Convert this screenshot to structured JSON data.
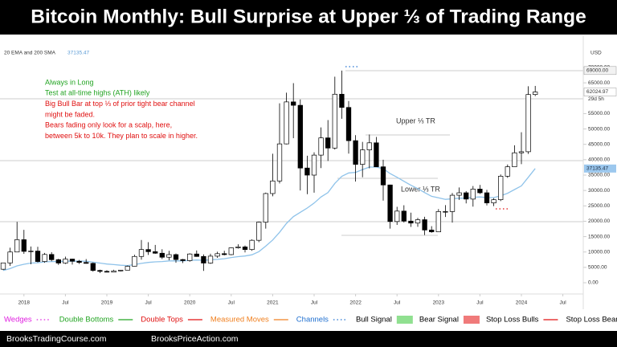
{
  "header": {
    "title": "Bitcoin Monthly: Bull Surprise at Upper ⅓ of Trading Range"
  },
  "chart_data": {
    "type": "candlestick",
    "indicator": "20 EMA and 200 SMA",
    "y_unit": "USD",
    "countdown": "29d 5h",
    "price_labels": [
      {
        "value": 69000,
        "label": "69000.00"
      }
    ],
    "notes": [
      {
        "text": "Always in Long",
        "color": "#22a422"
      },
      {
        "text": "Test at all-time highs (ATH) likely",
        "color": "#22a422"
      },
      {
        "text": "Big Bull Bar at top ⅓ of prior tight bear channel",
        "color": "#e01010"
      },
      {
        "text": "might be faded.",
        "color": "#e01010"
      },
      {
        "text": "Bears fading only look for a scalp, here,",
        "color": "#e01010"
      },
      {
        "text": "between 5k to 10k. They plan to scale in higher.",
        "color": "#e01010"
      }
    ],
    "upper_label": "Upper ⅓ TR",
    "lower_label": "Lower  ⅓ TR",
    "x": [
      "2017-10",
      "2017-11",
      "2017-12",
      "2018-01",
      "2018-02",
      "2018-03",
      "2018-04",
      "2018-05",
      "2018-06",
      "2018-07",
      "2018-08",
      "2018-09",
      "2018-10",
      "2018-11",
      "2018-12",
      "2019-01",
      "2019-02",
      "2019-03",
      "2019-04",
      "2019-05",
      "2019-06",
      "2019-07",
      "2019-08",
      "2019-09",
      "2019-10",
      "2019-11",
      "2019-12",
      "2020-01",
      "2020-02",
      "2020-03",
      "2020-04",
      "2020-05",
      "2020-06",
      "2020-07",
      "2020-08",
      "2020-09",
      "2020-10",
      "2020-11",
      "2020-12",
      "2021-01",
      "2021-02",
      "2021-03",
      "2021-04",
      "2021-05",
      "2021-06",
      "2021-07",
      "2021-08",
      "2021-09",
      "2021-10",
      "2021-11",
      "2021-12",
      "2022-01",
      "2022-02",
      "2022-03",
      "2022-04",
      "2022-05",
      "2022-06",
      "2022-07",
      "2022-08",
      "2022-09",
      "2022-10",
      "2022-11",
      "2022-12",
      "2023-01",
      "2023-02",
      "2023-03",
      "2023-04",
      "2023-05",
      "2023-06",
      "2023-07",
      "2023-08",
      "2023-09",
      "2023-10",
      "2023-11",
      "2023-12",
      "2024-01",
      "2024-02",
      "2024-03"
    ],
    "open": [
      4400,
      6450,
      10000,
      14000,
      10200,
      10300,
      6900,
      9200,
      7500,
      6400,
      7700,
      7000,
      6600,
      6300,
      4000,
      3700,
      3450,
      3850,
      4100,
      5350,
      8550,
      10800,
      10100,
      9600,
      8300,
      9150,
      7550,
      7200,
      9350,
      8550,
      6400,
      8650,
      9450,
      9150,
      11350,
      11650,
      10800,
      13800,
      19700,
      29000,
      33100,
      45150,
      58800,
      57700,
      37300,
      35000,
      41500,
      47100,
      43800,
      61300,
      57000,
      46200,
      38500,
      43200,
      45500,
      37700,
      31800,
      19900,
      23300,
      20050,
      19400,
      20500,
      17150,
      16550,
      23150,
      23150,
      28450,
      29250,
      27200,
      30450,
      29250,
      25950,
      27000,
      34650,
      37700,
      42250,
      42600,
      61200
    ],
    "high": [
      6470,
      11400,
      19800,
      17200,
      11800,
      11700,
      9700,
      9950,
      7800,
      8500,
      7800,
      7400,
      7700,
      6600,
      4250,
      4100,
      4200,
      4100,
      5600,
      9100,
      13900,
      13200,
      12300,
      10900,
      10400,
      9500,
      7750,
      9600,
      10500,
      9200,
      9450,
      10100,
      10400,
      11450,
      12500,
      12100,
      14100,
      19900,
      29300,
      41950,
      58350,
      61800,
      64900,
      59600,
      41300,
      42400,
      50500,
      52900,
      67000,
      69000,
      59100,
      48000,
      45800,
      48200,
      47400,
      40000,
      31900,
      24700,
      25200,
      22800,
      21100,
      21450,
      18400,
      23950,
      25250,
      29200,
      31000,
      29800,
      31450,
      31800,
      30200,
      27500,
      35200,
      38450,
      44700,
      48950,
      63900,
      64000
    ],
    "low": [
      4110,
      5500,
      10700,
      9400,
      6000,
      6600,
      6500,
      7000,
      5800,
      6100,
      5900,
      6100,
      6200,
      3600,
      3150,
      3350,
      3400,
      3700,
      4050,
      5300,
      7500,
      9050,
      9400,
      7700,
      7300,
      6500,
      6400,
      6850,
      8450,
      3850,
      6150,
      8100,
      8900,
      8950,
      11100,
      9850,
      10400,
      13200,
      17600,
      28100,
      32300,
      45000,
      47000,
      30000,
      28800,
      29300,
      37300,
      39600,
      43300,
      53300,
      42000,
      32900,
      34300,
      37200,
      37600,
      26700,
      17600,
      18800,
      19600,
      18150,
      18200,
      15500,
      16250,
      16500,
      21400,
      19550,
      26950,
      25800,
      24750,
      28850,
      25150,
      24900,
      26550,
      34100,
      37600,
      38550,
      41900,
      60700
    ],
    "close": [
      6450,
      10000,
      14000,
      10200,
      10300,
      6900,
      9200,
      7500,
      6400,
      7700,
      7000,
      6600,
      6300,
      4000,
      3700,
      3450,
      3850,
      4100,
      5350,
      8550,
      10800,
      10100,
      9600,
      8300,
      9150,
      7550,
      7200,
      9350,
      8550,
      6400,
      8650,
      9450,
      9150,
      11350,
      11650,
      10800,
      13800,
      19700,
      29000,
      33100,
      45150,
      58800,
      57700,
      37300,
      35000,
      41500,
      47100,
      43800,
      61300,
      57000,
      46200,
      38500,
      43200,
      45500,
      37700,
      31800,
      19900,
      23300,
      20050,
      19400,
      20500,
      17150,
      16550,
      23150,
      23150,
      28450,
      29250,
      27200,
      30450,
      29250,
      25950,
      27000,
      34650,
      37700,
      42250,
      42600,
      61200,
      62024.97
    ],
    "ema": [
      4000,
      4600,
      5500,
      6000,
      6400,
      6500,
      6800,
      6900,
      6900,
      7000,
      7000,
      7000,
      7000,
      6700,
      6400,
      6100,
      5900,
      5700,
      5600,
      5900,
      6300,
      6600,
      6800,
      6900,
      7100,
      7100,
      7100,
      7300,
      7400,
      7300,
      7500,
      7600,
      7800,
      8200,
      8500,
      8700,
      9100,
      10100,
      11900,
      13900,
      16400,
      19300,
      21500,
      22900,
      24300,
      25900,
      27900,
      29300,
      32300,
      34600,
      35700,
      35900,
      36800,
      37600,
      37600,
      37100,
      35500,
      34300,
      33000,
      31700,
      30600,
      29300,
      28100,
      27600,
      27100,
      27300,
      27500,
      27500,
      27800,
      27900,
      27700,
      27700,
      28300,
      29100,
      30300,
      31500,
      34300,
      37135.47
    ],
    "ema_color": "#8fc3ea",
    "up_color": "#ffffff",
    "down_color": "#000000",
    "ylim": [
      -3000,
      73000
    ],
    "yticks": [
      {
        "value": 0,
        "label": "0.00"
      },
      {
        "value": 5000,
        "label": "5000.00"
      },
      {
        "value": 10000,
        "label": "10000.00"
      },
      {
        "value": 15000,
        "label": "15000.00"
      },
      {
        "value": 20000,
        "label": "20000.00"
      },
      {
        "value": 25000,
        "label": "25000.00"
      },
      {
        "value": 30000,
        "label": "30000.00"
      },
      {
        "value": 35000,
        "label": "35000.00"
      },
      {
        "value": 40000,
        "label": "40000.00"
      },
      {
        "value": 45000,
        "label": "45000.00"
      },
      {
        "value": 50000,
        "label": "50000.00"
      },
      {
        "value": 55000,
        "label": "55000.00"
      },
      {
        "value": 65000,
        "label": "65000.00"
      },
      {
        "value": 70000,
        "label": "70000.00"
      }
    ],
    "xticks": [
      {
        "value": "2018-01",
        "label": "2018"
      },
      {
        "value": "2018-07",
        "label": "Jul"
      },
      {
        "value": "2019-01",
        "label": "2019"
      },
      {
        "value": "2019-07",
        "label": "Jul"
      },
      {
        "value": "2020-01",
        "label": "2020"
      },
      {
        "value": "2020-07",
        "label": "Jul"
      },
      {
        "value": "2021-01",
        "label": "2021"
      },
      {
        "value": "2021-07",
        "label": "Jul"
      },
      {
        "value": "2022-01",
        "label": "2022"
      },
      {
        "value": "2022-07",
        "label": "Jul"
      },
      {
        "value": "2023-01",
        "label": "2023"
      },
      {
        "value": "2023-07",
        "label": "Jul"
      },
      {
        "value": "2024-01",
        "label": "2024"
      },
      {
        "value": "2024-07",
        "label": "Jul"
      }
    ]
  },
  "legend": [
    {
      "label": "Wedges",
      "color": "#e020e0",
      "style": "dots"
    },
    {
      "label": "Double Bottoms",
      "color": "#22a422",
      "style": "line"
    },
    {
      "label": "Double Tops",
      "color": "#e01010",
      "style": "line"
    },
    {
      "label": "Measured Moves",
      "color": "#f08020",
      "style": "line"
    },
    {
      "label": "Channels",
      "color": "#2070d0",
      "style": "dots"
    },
    {
      "label": "Bull Signal",
      "color": "#90e090",
      "style": "box"
    },
    {
      "label": "Bear Signal",
      "color": "#f07a7a",
      "style": "box"
    },
    {
      "label": "Stop Loss Bulls",
      "color": "#e01010",
      "style": "line"
    },
    {
      "label": "Stop Loss Bears",
      "color": "#e01010",
      "style": "dots"
    }
  ],
  "footer": {
    "left": "BrooksTradingCourse.com",
    "right": "BrooksPriceAction.com"
  }
}
